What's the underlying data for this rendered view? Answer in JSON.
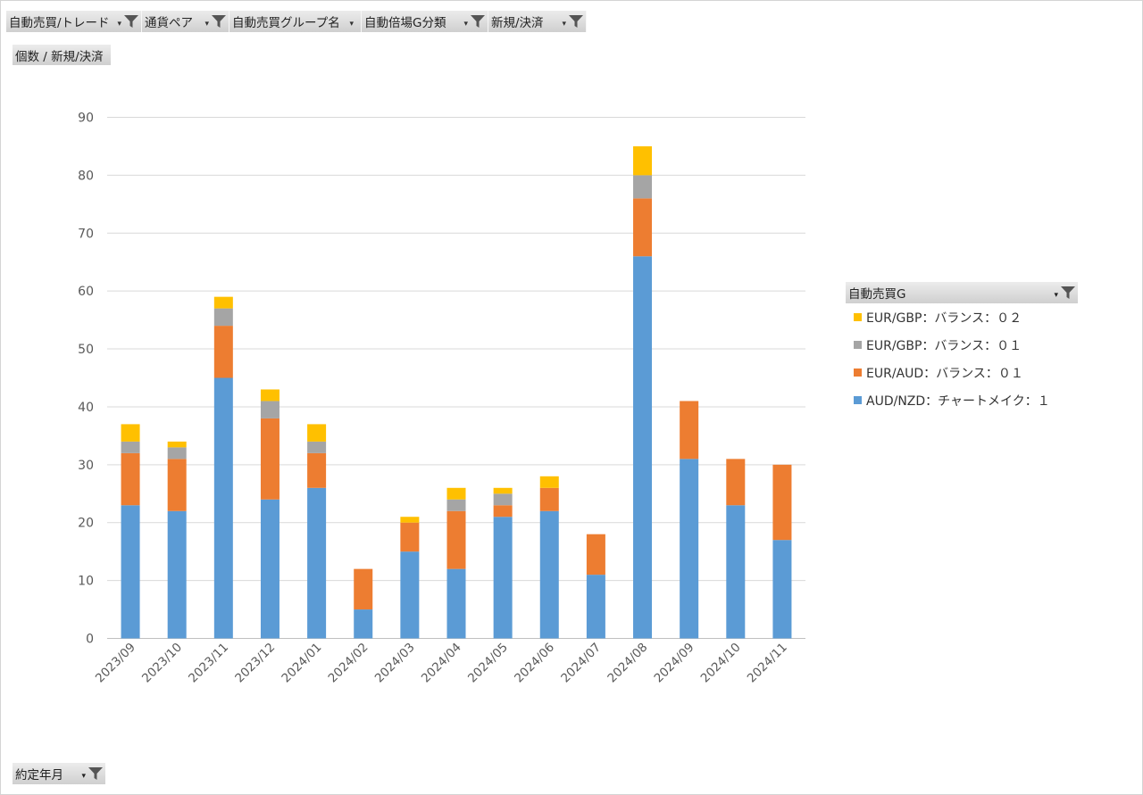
{
  "filters": [
    {
      "label": "自動売買/トレード",
      "has_funnel": true
    },
    {
      "label": "通貨ペア",
      "has_funnel": true
    },
    {
      "label": "自動売買グループ名",
      "has_funnel": false
    },
    {
      "label": "自動倍場G分類",
      "has_funnel": true
    },
    {
      "label": "新規/決済",
      "has_funnel": true
    }
  ],
  "value_field_label": "個数 / 新規/決済",
  "axis_field_label": "約定年月",
  "legend_title": "自動売買G",
  "icons": {
    "filter": "funnel-icon",
    "dropdown": "dropdown-arrow-icon"
  },
  "chart_data": {
    "type": "bar",
    "stacked": true,
    "title": "",
    "xlabel": "",
    "ylabel": "",
    "ylim": [
      0,
      90
    ],
    "yticks": [
      0,
      10,
      20,
      30,
      40,
      50,
      60,
      70,
      80,
      90
    ],
    "grid": true,
    "legend_position": "right",
    "categories": [
      "2023/09",
      "2023/10",
      "2023/11",
      "2023/12",
      "2024/01",
      "2024/02",
      "2024/03",
      "2024/04",
      "2024/05",
      "2024/06",
      "2024/07",
      "2024/08",
      "2024/09",
      "2024/10",
      "2024/11"
    ],
    "series": [
      {
        "name": "AUD/NZD：チャートメイク：１",
        "color": "#5b9bd5",
        "values": [
          23,
          22,
          45,
          24,
          26,
          5,
          15,
          12,
          21,
          22,
          11,
          66,
          31,
          23,
          17
        ]
      },
      {
        "name": "EUR/AUD：バランス：０１",
        "color": "#ed7d31",
        "values": [
          9,
          9,
          9,
          14,
          6,
          7,
          5,
          10,
          2,
          4,
          7,
          10,
          10,
          8,
          13
        ]
      },
      {
        "name": "EUR/GBP：バランス：０１",
        "color": "#a5a5a5",
        "values": [
          2,
          2,
          3,
          3,
          2,
          0,
          0,
          2,
          2,
          0,
          0,
          4,
          0,
          0,
          0
        ]
      },
      {
        "name": "EUR/GBP：バランス：０２",
        "color": "#ffc000",
        "values": [
          3,
          1,
          2,
          2,
          3,
          0,
          1,
          2,
          1,
          2,
          0,
          5,
          0,
          0,
          0
        ]
      }
    ]
  }
}
